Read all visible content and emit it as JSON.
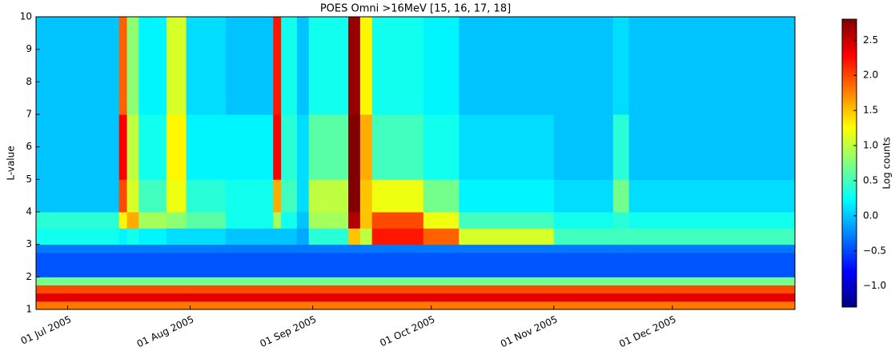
{
  "chart_data": {
    "type": "heatmap",
    "title": "POES Omni >16MeV [15, 16, 17, 18]",
    "ylabel": "L-value",
    "colorbar_label": "Log counts",
    "x": [
      "2005-06-23",
      "2005-07-14",
      "2005-07-16",
      "2005-07-19",
      "2005-07-26",
      "2005-07-31",
      "2005-08-10",
      "2005-08-22",
      "2005-08-24",
      "2005-08-28",
      "2005-08-31",
      "2005-09-10",
      "2005-09-13",
      "2005-09-16",
      "2005-09-29",
      "2005-10-08",
      "2005-11-01",
      "2005-11-16",
      "2005-11-20",
      "2006-01-01"
    ],
    "y": [
      1,
      1.25,
      1.5,
      1.75,
      2,
      2.75,
      3,
      3.5,
      4,
      5,
      7,
      10
    ],
    "z": [
      [
        1.8,
        2.4,
        2.0,
        0.7,
        -0.45,
        -0.3,
        0.3,
        0.4,
        0.0,
        0.0,
        0.0
      ],
      [
        1.8,
        2.4,
        2.0,
        0.7,
        -0.45,
        -0.3,
        0.2,
        1.3,
        2.0,
        2.3,
        1.9
      ],
      [
        1.8,
        2.4,
        2.0,
        0.7,
        -0.45,
        -0.3,
        0.3,
        1.6,
        1.1,
        1.0,
        0.8
      ],
      [
        1.8,
        2.4,
        2.0,
        0.7,
        -0.45,
        -0.3,
        0.2,
        0.9,
        0.5,
        0.3,
        0.2
      ],
      [
        1.8,
        2.4,
        2.0,
        0.7,
        -0.45,
        -0.3,
        0.1,
        0.8,
        1.2,
        1.3,
        1.1
      ],
      [
        1.8,
        2.4,
        2.0,
        0.7,
        -0.45,
        -0.3,
        0.1,
        0.6,
        0.4,
        0.2,
        0.1
      ],
      [
        1.8,
        2.4,
        2.0,
        0.7,
        -0.45,
        -0.3,
        0.0,
        0.3,
        0.3,
        0.2,
        0.0
      ],
      [
        1.8,
        2.4,
        2.0,
        0.7,
        -0.45,
        -0.3,
        0.0,
        0.9,
        1.6,
        2.3,
        2.2
      ],
      [
        1.8,
        2.4,
        2.0,
        0.7,
        -0.45,
        -0.3,
        0.0,
        0.3,
        0.5,
        0.4,
        0.3
      ],
      [
        1.8,
        2.4,
        2.0,
        0.7,
        -0.45,
        -0.3,
        -0.1,
        0.0,
        0.1,
        0.1,
        0.0
      ],
      [
        1.8,
        2.4,
        2.0,
        0.7,
        -0.45,
        -0.3,
        0.4,
        0.9,
        1.0,
        0.6,
        0.3
      ],
      [
        1.8,
        2.4,
        2.0,
        0.7,
        -0.45,
        -0.3,
        1.5,
        2.6,
        2.8,
        2.8,
        2.7
      ],
      [
        1.8,
        2.4,
        2.0,
        0.7,
        -0.45,
        -0.3,
        1.0,
        1.5,
        1.5,
        1.6,
        1.3
      ],
      [
        1.8,
        2.4,
        2.0,
        0.7,
        -0.45,
        -0.3,
        2.2,
        2.0,
        1.2,
        0.5,
        0.3
      ],
      [
        1.8,
        2.4,
        2.0,
        0.7,
        -0.45,
        -0.3,
        1.9,
        1.2,
        0.7,
        0.3,
        0.2
      ],
      [
        1.8,
        2.4,
        2.0,
        0.7,
        -0.45,
        -0.3,
        1.1,
        0.5,
        0.2,
        0.1,
        0.0
      ],
      [
        1.8,
        2.4,
        2.0,
        0.7,
        -0.45,
        -0.3,
        0.5,
        0.3,
        0.1,
        0.0,
        0.0
      ],
      [
        1.8,
        2.4,
        2.0,
        0.7,
        -0.45,
        -0.3,
        0.5,
        0.4,
        0.7,
        0.4,
        0.1
      ],
      [
        1.8,
        2.4,
        2.0,
        0.7,
        -0.45,
        -0.3,
        0.5,
        0.3,
        0.1,
        0.0,
        0.0
      ]
    ],
    "xlim": [
      "2005-06-23",
      "2006-01-01"
    ],
    "xticks": [
      {
        "value": "2005-07-01",
        "label": "01 Jul 2005"
      },
      {
        "value": "2005-08-01",
        "label": "01 Aug 2005"
      },
      {
        "value": "2005-09-01",
        "label": "01 Sep 2005"
      },
      {
        "value": "2005-10-01",
        "label": "01 Oct 2005"
      },
      {
        "value": "2005-11-01",
        "label": "01 Nov 2005"
      },
      {
        "value": "2005-12-01",
        "label": "01 Dec 2005"
      }
    ],
    "ylim": [
      1,
      10
    ],
    "yticks": [
      1,
      2,
      3,
      4,
      5,
      6,
      7,
      8,
      9,
      10
    ],
    "clim": [
      -1.3,
      2.8
    ],
    "cticks": [
      {
        "value": -1,
        "label": "−1.0"
      },
      {
        "value": -0.5,
        "label": "−0.5"
      },
      {
        "value": 0,
        "label": "0.0"
      },
      0.5,
      {
        "value": 1,
        "label": "1.0"
      },
      1.5,
      {
        "value": 2,
        "label": "2.0"
      },
      2.5
    ],
    "colormap": "jet"
  }
}
